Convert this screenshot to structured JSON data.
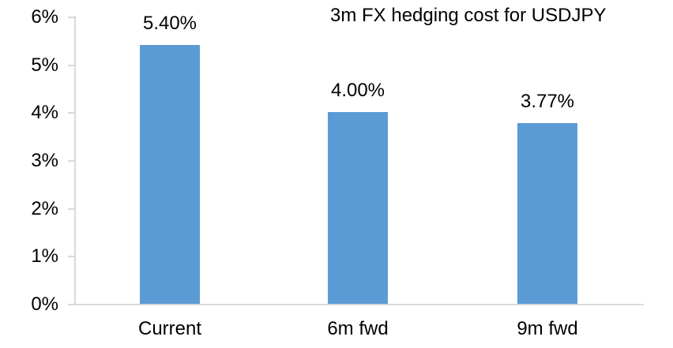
{
  "title": "3m FX hedging cost for USDJPY",
  "chart_data": {
    "type": "bar",
    "title": "3m FX hedging cost for USDJPY",
    "categories": [
      "Current",
      "6m fwd",
      "9m fwd"
    ],
    "values": [
      5.4,
      4.0,
      3.77
    ],
    "data_labels": [
      "5.40%",
      "4.00%",
      "3.77%"
    ],
    "xlabel": "",
    "ylabel": "",
    "ylim": [
      0,
      6
    ],
    "y_ticks": [
      {
        "value": 0,
        "label": "0%"
      },
      {
        "value": 1,
        "label": "1%"
      },
      {
        "value": 2,
        "label": "2%"
      },
      {
        "value": 3,
        "label": "3%"
      },
      {
        "value": 4,
        "label": "4%"
      },
      {
        "value": 5,
        "label": "5%"
      },
      {
        "value": 6,
        "label": "6%"
      }
    ],
    "grid": false,
    "legend_position": "none",
    "colors": {
      "bar": "#5B9BD5",
      "axis": "#D9D9D9",
      "text": "#000000",
      "background": "#FFFFFF"
    }
  }
}
